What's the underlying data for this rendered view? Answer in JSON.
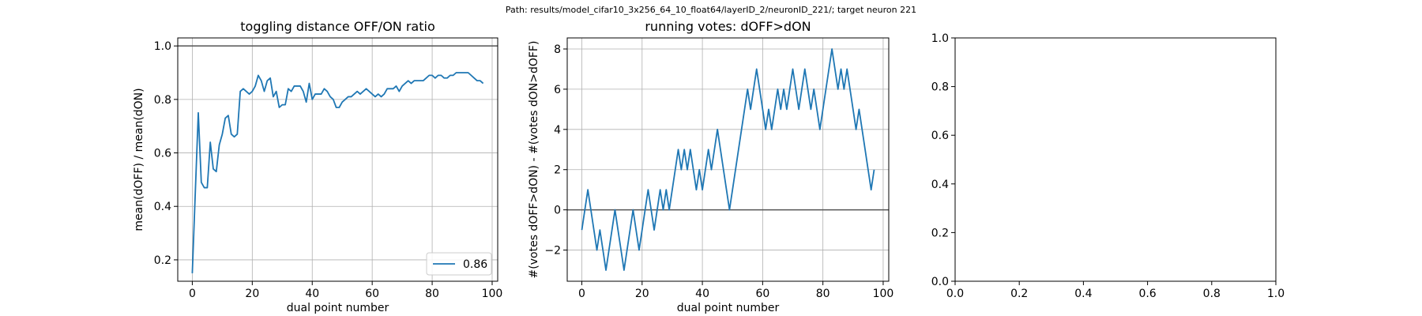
{
  "suptitle": "Path: results/model_cifar10_3x256_64_10_float64/layerID_2/neuronID_221/; target neuron 221",
  "chart_data": [
    {
      "type": "line",
      "title": "toggling distance OFF/ON ratio",
      "xlabel": "dual point number",
      "ylabel": "mean(dOFF) / mean(dON)",
      "xlim": [
        -4.85,
        101.85
      ],
      "ylim": [
        0.12,
        1.03
      ],
      "xticks": [
        0,
        20,
        40,
        60,
        80,
        100
      ],
      "yticks": [
        0.2,
        0.4,
        0.6,
        0.8,
        1.0
      ],
      "ytick_labels": [
        "0.2",
        "0.4",
        "0.6",
        "0.8",
        "1.0"
      ],
      "grid": true,
      "hline": 1.0,
      "legend": {
        "position": "lower-right",
        "entries": [
          "0.86"
        ]
      },
      "colors": {
        "series": "#1f77b4",
        "reference_line": "#555555"
      },
      "series": [
        {
          "name": "0.86",
          "x": [
            0,
            1,
            2,
            3,
            4,
            5,
            6,
            7,
            8,
            9,
            10,
            11,
            12,
            13,
            14,
            15,
            16,
            17,
            18,
            19,
            20,
            21,
            22,
            23,
            24,
            25,
            26,
            27,
            28,
            29,
            30,
            31,
            32,
            33,
            34,
            35,
            36,
            37,
            38,
            39,
            40,
            41,
            42,
            43,
            44,
            45,
            46,
            47,
            48,
            49,
            50,
            51,
            52,
            53,
            54,
            55,
            56,
            57,
            58,
            59,
            60,
            61,
            62,
            63,
            64,
            65,
            66,
            67,
            68,
            69,
            70,
            71,
            72,
            73,
            74,
            75,
            76,
            77,
            78,
            79,
            80,
            81,
            82,
            83,
            84,
            85,
            86,
            87,
            88,
            89,
            90,
            91,
            92,
            93,
            94,
            95,
            96,
            97
          ],
          "values": [
            0.15,
            0.45,
            0.75,
            0.49,
            0.47,
            0.47,
            0.64,
            0.54,
            0.53,
            0.63,
            0.67,
            0.73,
            0.74,
            0.67,
            0.66,
            0.67,
            0.83,
            0.84,
            0.83,
            0.82,
            0.83,
            0.85,
            0.89,
            0.87,
            0.83,
            0.87,
            0.88,
            0.81,
            0.83,
            0.77,
            0.78,
            0.78,
            0.84,
            0.83,
            0.85,
            0.85,
            0.85,
            0.83,
            0.79,
            0.86,
            0.8,
            0.82,
            0.82,
            0.82,
            0.84,
            0.83,
            0.81,
            0.8,
            0.77,
            0.77,
            0.79,
            0.8,
            0.81,
            0.81,
            0.82,
            0.83,
            0.82,
            0.83,
            0.84,
            0.83,
            0.82,
            0.81,
            0.82,
            0.81,
            0.82,
            0.84,
            0.84,
            0.84,
            0.85,
            0.83,
            0.85,
            0.86,
            0.87,
            0.86,
            0.87,
            0.87,
            0.87,
            0.87,
            0.88,
            0.89,
            0.89,
            0.88,
            0.89,
            0.89,
            0.88,
            0.88,
            0.89,
            0.89,
            0.9,
            0.9,
            0.9,
            0.9,
            0.9,
            0.89,
            0.88,
            0.87,
            0.87,
            0.86
          ]
        }
      ]
    },
    {
      "type": "line",
      "title": "running votes: dOFF>dON",
      "xlabel": "dual point number",
      "ylabel": "#(votes dOFF>dON) - #(votes dON>dOFF)",
      "xlim": [
        -4.85,
        101.85
      ],
      "ylim": [
        -3.55,
        8.55
      ],
      "xticks": [
        0,
        20,
        40,
        60,
        80,
        100
      ],
      "yticks": [
        -2,
        0,
        2,
        4,
        6,
        8
      ],
      "ytick_labels": [
        "−2",
        "0",
        "2",
        "4",
        "6",
        "8"
      ],
      "grid": true,
      "hline": 0,
      "colors": {
        "series": "#1f77b4",
        "reference_line": "#555555"
      },
      "series": [
        {
          "x": [
            0,
            1,
            2,
            3,
            4,
            5,
            6,
            7,
            8,
            9,
            10,
            11,
            12,
            13,
            14,
            15,
            16,
            17,
            18,
            19,
            20,
            21,
            22,
            23,
            24,
            25,
            26,
            27,
            28,
            29,
            30,
            31,
            32,
            33,
            34,
            35,
            36,
            37,
            38,
            39,
            40,
            41,
            42,
            43,
            44,
            45,
            46,
            47,
            48,
            49,
            50,
            51,
            52,
            53,
            54,
            55,
            56,
            57,
            58,
            59,
            60,
            61,
            62,
            63,
            64,
            65,
            66,
            67,
            68,
            69,
            70,
            71,
            72,
            73,
            74,
            75,
            76,
            77,
            78,
            79,
            80,
            81,
            82,
            83,
            84,
            85,
            86,
            87,
            88,
            89,
            90,
            91,
            92,
            93,
            94,
            95,
            96,
            97
          ],
          "values": [
            -1,
            0,
            1,
            0,
            -1,
            -2,
            -1,
            -2,
            -3,
            -2,
            -1,
            0,
            -1,
            -2,
            -3,
            -2,
            -1,
            0,
            -1,
            -2,
            -1,
            0,
            1,
            0,
            -1,
            0,
            1,
            0,
            1,
            0,
            1,
            2,
            3,
            2,
            3,
            2,
            3,
            2,
            1,
            2,
            1,
            2,
            3,
            2,
            3,
            4,
            3,
            2,
            1,
            0,
            1,
            2,
            3,
            4,
            5,
            6,
            5,
            6,
            7,
            6,
            5,
            4,
            5,
            4,
            5,
            6,
            5,
            6,
            5,
            6,
            7,
            6,
            5,
            6,
            7,
            6,
            5,
            6,
            5,
            4,
            5,
            6,
            7,
            8,
            7,
            6,
            7,
            6,
            7,
            6,
            5,
            4,
            5,
            4,
            3,
            2,
            1,
            2
          ]
        }
      ]
    },
    {
      "type": "line",
      "title": "",
      "xlim": [
        0,
        1
      ],
      "ylim": [
        0,
        1
      ],
      "xticks": [
        0,
        0.2,
        0.4,
        0.6,
        0.8,
        1.0
      ],
      "yticks": [
        0,
        0.2,
        0.4,
        0.6,
        0.8,
        1.0
      ],
      "xtick_labels": [
        "0.0",
        "0.2",
        "0.4",
        "0.6",
        "0.8",
        "1.0"
      ],
      "ytick_labels": [
        "0.0",
        "0.2",
        "0.4",
        "0.6",
        "0.8",
        "1.0"
      ],
      "grid": false,
      "series": []
    }
  ]
}
